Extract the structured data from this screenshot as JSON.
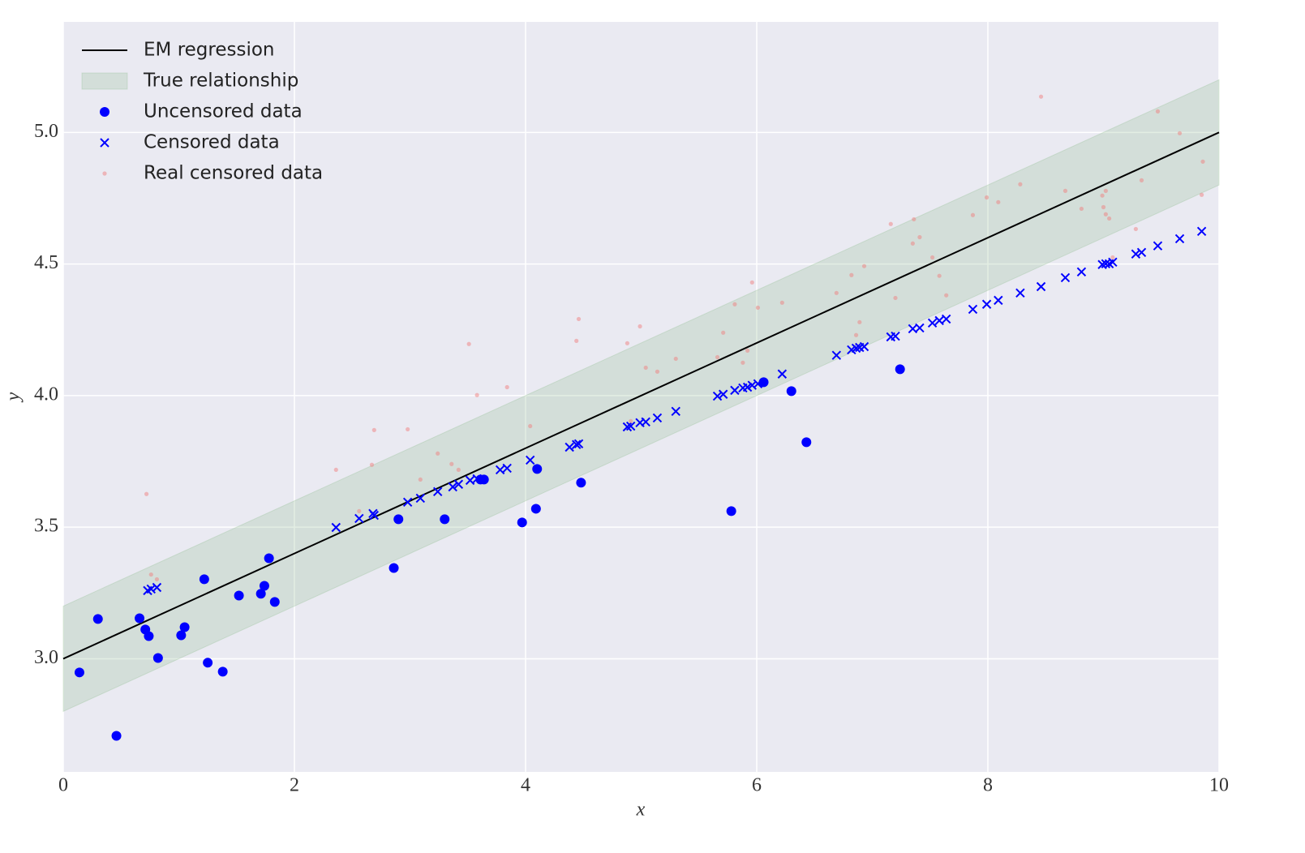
{
  "chart_data": {
    "type": "scatter",
    "xlabel": "x",
    "ylabel": "y",
    "xlim": [
      0,
      10
    ],
    "ylim": [
      2.57,
      5.42
    ],
    "xticks": [
      0,
      2,
      4,
      6,
      8,
      10
    ],
    "yticks": [
      {
        "value": 3,
        "label": "3.0"
      },
      3.5,
      {
        "value": 4,
        "label": "4.0"
      },
      4.5,
      {
        "value": 5,
        "label": "5.0"
      }
    ],
    "grid": true,
    "legend": "upper left",
    "series": [
      {
        "name": "EM regression",
        "kind": "line",
        "color": "#000000",
        "x": [
          0,
          10
        ],
        "values": [
          3.0,
          5.0
        ]
      },
      {
        "name": "True relationship",
        "kind": "band",
        "color": "#8fbc8f",
        "x": [
          0,
          10
        ],
        "lower": [
          2.8,
          4.8
        ],
        "upper": [
          3.2,
          5.2
        ]
      },
      {
        "name": "Uncensored data",
        "kind": "scatter",
        "marker": "o",
        "color": "#0000ff",
        "x": [
          0.14,
          0.3,
          0.46,
          0.66,
          0.71,
          0.74,
          0.82,
          1.02,
          1.05,
          1.22,
          1.25,
          1.38,
          1.52,
          1.71,
          1.74,
          1.78,
          1.83,
          2.86,
          2.9,
          3.3,
          3.61,
          3.64,
          3.97,
          4.09,
          4.1,
          4.48,
          5.78,
          6.06,
          6.3,
          6.43,
          7.24
        ],
        "values": [
          2.948,
          3.151,
          2.707,
          3.154,
          3.111,
          3.086,
          3.003,
          3.089,
          3.12,
          3.302,
          2.985,
          2.951,
          3.24,
          3.247,
          3.277,
          3.382,
          3.216,
          3.345,
          3.53,
          3.53,
          3.681,
          3.681,
          3.518,
          3.57,
          3.721,
          3.669,
          3.561,
          4.051,
          4.017,
          3.823,
          4.1
        ]
      },
      {
        "name": "Censored data",
        "kind": "scatter",
        "marker": "x",
        "color": "#0000ff",
        "x": [
          0.73,
          0.76,
          0.81,
          2.36,
          2.56,
          2.68,
          2.69,
          2.98,
          3.09,
          3.24,
          3.37,
          3.42,
          3.52,
          3.58,
          3.78,
          3.84,
          4.04,
          4.38,
          4.44,
          4.46,
          4.88,
          4.91,
          4.99,
          5.04,
          5.14,
          5.3,
          5.66,
          5.71,
          5.81,
          5.88,
          5.92,
          5.96,
          6.01,
          6.22,
          6.69,
          6.82,
          6.86,
          6.89,
          6.93,
          7.16,
          7.2,
          7.35,
          7.41,
          7.52,
          7.58,
          7.64,
          7.87,
          7.99,
          8.09,
          8.28,
          8.46,
          8.67,
          8.81,
          8.99,
          9.02,
          9.05,
          9.08,
          9.28,
          9.33,
          9.47,
          9.66,
          9.85
        ],
        "values": [
          3.259,
          3.265,
          3.271,
          3.499,
          3.533,
          3.552,
          3.545,
          3.595,
          3.61,
          3.635,
          3.653,
          3.663,
          3.678,
          3.684,
          3.718,
          3.724,
          3.755,
          3.804,
          3.814,
          3.817,
          3.881,
          3.884,
          3.897,
          3.9,
          3.915,
          3.94,
          3.998,
          4.005,
          4.02,
          4.029,
          4.032,
          4.039,
          4.045,
          4.082,
          4.153,
          4.174,
          4.18,
          4.183,
          4.186,
          4.223,
          4.226,
          4.254,
          4.257,
          4.276,
          4.285,
          4.291,
          4.328,
          4.347,
          4.362,
          4.39,
          4.414,
          4.448,
          4.47,
          4.498,
          4.501,
          4.501,
          4.507,
          4.538,
          4.544,
          4.569,
          4.596,
          4.624
        ]
      },
      {
        "name": "Real censored data",
        "kind": "scatter",
        "marker": "dot",
        "color": "#f08080",
        "x": [
          0.72,
          0.76,
          0.81,
          2.36,
          2.56,
          2.67,
          2.69,
          2.98,
          3.09,
          3.24,
          3.36,
          3.42,
          3.51,
          3.58,
          3.84,
          4.04,
          4.44,
          4.46,
          4.88,
          4.91,
          4.99,
          5.04,
          5.14,
          5.3,
          5.66,
          5.71,
          5.81,
          5.88,
          5.92,
          5.96,
          6.01,
          6.22,
          6.69,
          6.82,
          6.86,
          6.89,
          6.93,
          7.16,
          7.2,
          7.35,
          7.36,
          7.41,
          7.52,
          7.58,
          7.64,
          7.87,
          7.99,
          8.09,
          8.28,
          8.46,
          8.67,
          8.81,
          8.99,
          9.02,
          9.0,
          9.02,
          9.05,
          9.08,
          9.28,
          9.33,
          9.47,
          9.66,
          9.85,
          9.86
        ],
        "values": [
          3.626,
          3.32,
          3.302,
          3.718,
          3.561,
          3.737,
          3.869,
          3.872,
          3.681,
          3.78,
          3.74,
          3.718,
          4.196,
          4.002,
          4.032,
          3.884,
          4.208,
          4.291,
          4.199,
          3.903,
          4.263,
          4.106,
          4.091,
          4.14,
          4.146,
          4.239,
          4.347,
          4.125,
          4.171,
          4.43,
          4.334,
          4.353,
          4.39,
          4.458,
          4.23,
          4.279,
          4.492,
          4.652,
          4.371,
          4.578,
          4.67,
          4.602,
          4.525,
          4.455,
          4.381,
          4.686,
          4.753,
          4.735,
          4.803,
          5.136,
          4.778,
          4.71,
          4.76,
          4.778,
          4.716,
          4.689,
          4.673,
          4.525,
          4.633,
          4.818,
          5.08,
          4.997,
          4.763,
          4.889
        ]
      }
    ]
  }
}
